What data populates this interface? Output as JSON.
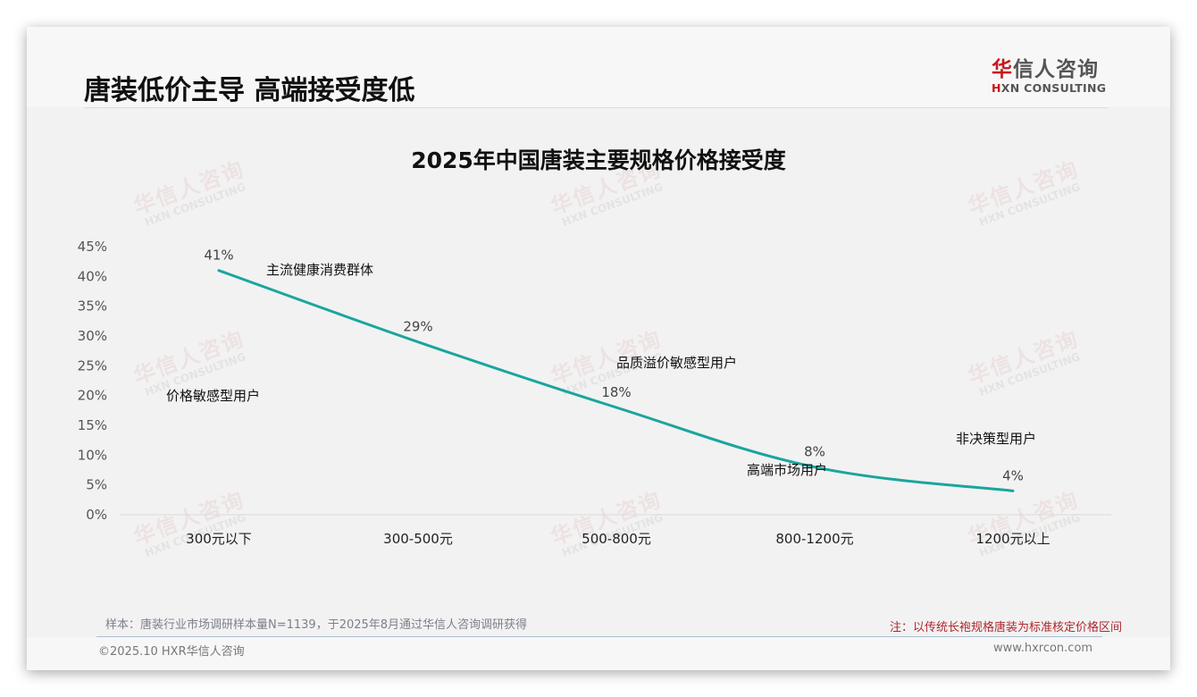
{
  "header": {
    "title": "唐装低价主导 高端接受度低",
    "logo": {
      "cn_first": "华",
      "cn_rest": "信人咨询",
      "en_first": "H",
      "en_rest": "XN CONSULTING"
    }
  },
  "watermark": {
    "cn": "华信人咨询",
    "en": "HXN CONSULTING"
  },
  "chart_data": {
    "type": "line",
    "title": "2025年中国唐装主要规格价格接受度",
    "categories": [
      "300元以下",
      "300-500元",
      "500-800元",
      "800-1200元",
      "1200元以上"
    ],
    "values": [
      41,
      29,
      18,
      8,
      4
    ],
    "data_labels": [
      "41%",
      "29%",
      "18%",
      "8%",
      "4%"
    ],
    "xlabel": "",
    "ylabel": "",
    "ylim": [
      0,
      45
    ],
    "yticks": [
      "45%",
      "40%",
      "35%",
      "30%",
      "25%",
      "20%",
      "15%",
      "10%",
      "5%",
      "0%"
    ],
    "grid": false,
    "legend": null,
    "line_color": "#1aa59e",
    "annotations": [
      {
        "text": "主流健康消费群体",
        "near": "300-500元"
      },
      {
        "text": "价格敏感型用户",
        "near": "300元以下"
      },
      {
        "text": "品质溢价敏感型用户",
        "near": "500-800元"
      },
      {
        "text": "高端市场用户",
        "near": "800-1200元"
      },
      {
        "text": "非决策型用户",
        "near": "1200元以上"
      }
    ]
  },
  "footer": {
    "sample_note": "样本：唐装行业市场调研样本量N=1139，于2025年8月通过华信人咨询调研获得",
    "price_note": "注：以传统长袍规格唐装为标准核定价格区间",
    "copyright": "©2025.10 HXR华信人咨询",
    "website": "www.hxrcon.com"
  }
}
